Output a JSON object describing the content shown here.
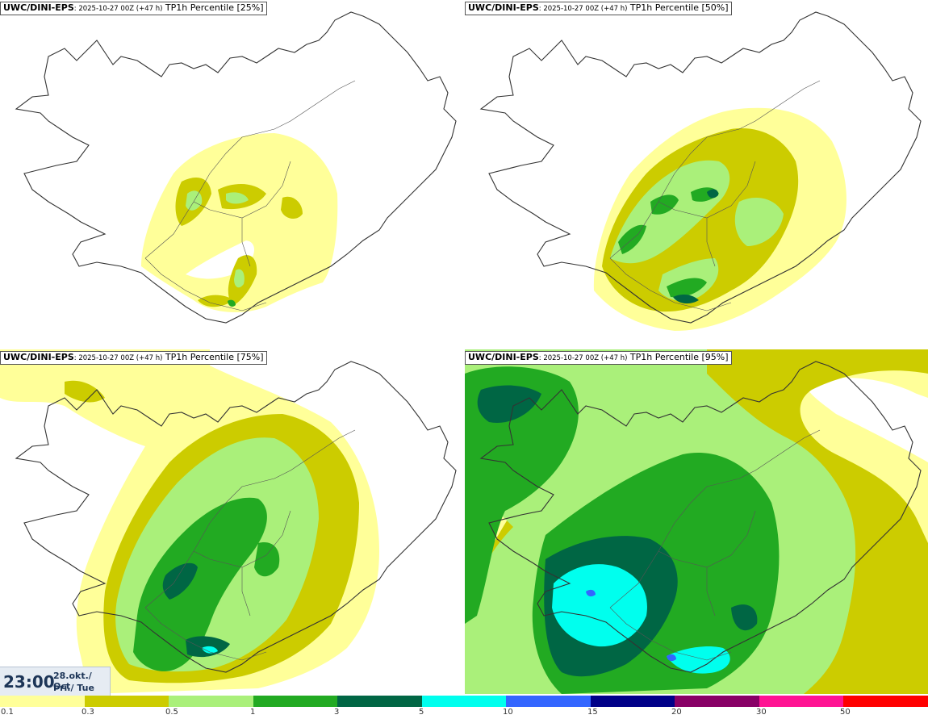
{
  "panels": [
    {
      "source": "UWC/DINI-EPS",
      "run": ": 2025-10-27 00Z (+47 h)",
      "title": " TP1h Percentile [25%]",
      "percentile": 25
    },
    {
      "source": "UWC/DINI-EPS",
      "run": ": 2025-10-27 00Z (+47 h)",
      "title": " TP1h Percentile [50%]",
      "percentile": 50
    },
    {
      "source": "UWC/DINI-EPS",
      "run": ": 2025-10-27 00Z (+47 h)",
      "title": " TP1h Percentile [75%]",
      "percentile": 75
    },
    {
      "source": "UWC/DINI-EPS",
      "run": ": 2025-10-27 00Z (+47 h)",
      "title": " TP1h Percentile [95%]",
      "percentile": 95
    }
  ],
  "valid_time": {
    "time": "23:00",
    "date_line1": "28.okt./ Oct",
    "date_line2": "Þri./ Tue"
  },
  "legend": {
    "ticks": [
      "0.1",
      "0.3",
      "0.5",
      "1",
      "3",
      "5",
      "10",
      "15",
      "20",
      "30",
      "50"
    ],
    "colors": [
      "#ffff99",
      "#cccc00",
      "#aaf07a",
      "#22aa22",
      "#006644",
      "#00ffee",
      "#3366ff",
      "#000088",
      "#880066",
      "#ff1493",
      "#ff0000"
    ]
  },
  "colors": {
    "pale_yellow": "#ffff99",
    "olive": "#cccc00",
    "light_green": "#aaf07a",
    "green": "#22aa22",
    "dark_green": "#006644",
    "cyan": "#00ffee",
    "blue": "#3366ff",
    "coast": "#333333"
  }
}
